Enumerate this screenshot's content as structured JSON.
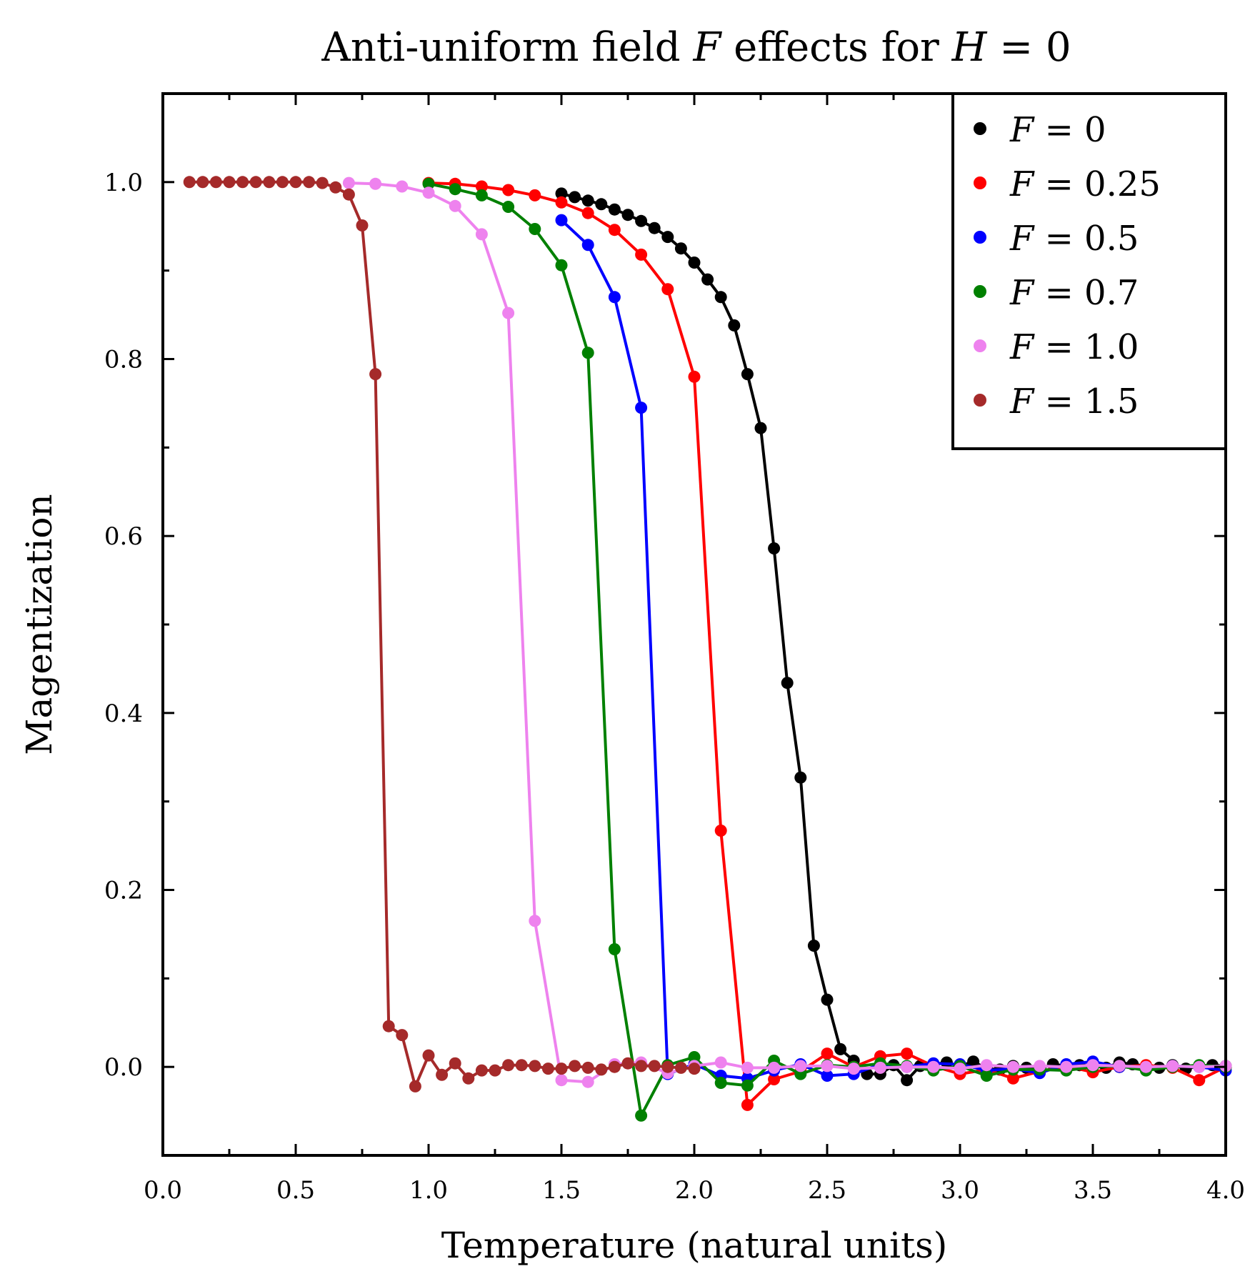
{
  "chart_data": {
    "type": "line",
    "title_parts": {
      "prefix": "Anti-uniform field ",
      "var": "F",
      "middle": " effects for ",
      "var2": "H",
      "suffix": " = 0"
    },
    "xlabel": "Temperature (natural units)",
    "ylabel": "Magentization",
    "xlim": [
      0.0,
      4.0
    ],
    "ylim": [
      -0.1,
      1.1
    ],
    "xticks": [
      "0.0",
      "0.5",
      "1.0",
      "1.5",
      "2.0",
      "2.5",
      "3.0",
      "3.5",
      "4.0"
    ],
    "xtick_values": [
      0.0,
      0.5,
      1.0,
      1.5,
      2.0,
      2.5,
      3.0,
      3.5,
      4.0
    ],
    "yticks": [
      "0.0",
      "0.2",
      "0.4",
      "0.6",
      "0.8",
      "1.0"
    ],
    "ytick_values": [
      0.0,
      0.2,
      0.4,
      0.6,
      0.8,
      1.0
    ],
    "legend_position": "top-right",
    "series": [
      {
        "name": "F = 0",
        "var": "F",
        "rest": "= 0",
        "color": "#000000",
        "x": [
          1.5,
          1.55,
          1.6,
          1.65,
          1.7,
          1.75,
          1.8,
          1.85,
          1.9,
          1.95,
          2.0,
          2.05,
          2.1,
          2.15,
          2.2,
          2.25,
          2.3,
          2.35,
          2.4,
          2.45,
          2.5,
          2.55,
          2.6,
          2.65,
          2.7,
          2.75,
          2.8,
          2.85,
          2.9,
          2.95,
          3.0,
          3.05,
          3.1,
          3.15,
          3.2,
          3.25,
          3.3,
          3.35,
          3.4,
          3.45,
          3.5,
          3.55,
          3.6,
          3.65,
          3.7,
          3.75,
          3.8,
          3.85,
          3.9,
          3.95,
          4.0
        ],
        "y": [
          0.987,
          0.983,
          0.979,
          0.975,
          0.969,
          0.963,
          0.956,
          0.948,
          0.938,
          0.925,
          0.909,
          0.89,
          0.87,
          0.838,
          0.783,
          0.722,
          0.586,
          0.434,
          0.327,
          0.137,
          0.076,
          0.02,
          0.007,
          -0.008,
          -0.008,
          0.002,
          -0.015,
          0.001,
          0.003,
          0.005,
          0.001,
          0.006,
          -0.002,
          -0.003,
          0.001,
          -0.001,
          -0.002,
          0.003,
          0.001,
          0.002,
          0.001,
          -0.001,
          0.005,
          0.003,
          0.001,
          -0.001,
          0.002,
          -0.002,
          0.001,
          0.002,
          0.001
        ]
      },
      {
        "name": "F = 0.25",
        "var": "F",
        "rest": "= 0.25",
        "color": "#ff0000",
        "x": [
          1.0,
          1.1,
          1.2,
          1.3,
          1.4,
          1.5,
          1.6,
          1.7,
          1.8,
          1.9,
          2.0,
          2.1,
          2.2,
          2.3,
          2.4,
          2.5,
          2.6,
          2.7,
          2.8,
          2.9,
          3.0,
          3.1,
          3.2,
          3.3,
          3.4,
          3.5,
          3.6,
          3.7,
          3.8,
          3.9,
          4.0
        ],
        "y": [
          0.999,
          0.998,
          0.995,
          0.991,
          0.985,
          0.977,
          0.965,
          0.946,
          0.918,
          0.879,
          0.78,
          0.267,
          -0.043,
          -0.014,
          -0.005,
          0.015,
          0.0,
          0.012,
          0.015,
          0.001,
          -0.008,
          -0.003,
          -0.013,
          -0.005,
          0.001,
          -0.006,
          0.0,
          0.002,
          -0.001,
          -0.015,
          0.0
        ]
      },
      {
        "name": "F = 0.5",
        "var": "F",
        "rest": "= 0.5",
        "color": "#0000ff",
        "x": [
          1.5,
          1.6,
          1.7,
          1.8,
          1.9,
          2.0,
          2.1,
          2.2,
          2.3,
          2.4,
          2.5,
          2.6,
          2.7,
          2.8,
          2.9,
          3.0,
          3.1,
          3.2,
          3.3,
          3.4,
          3.5,
          3.6,
          3.7,
          3.8,
          3.9,
          4.0
        ],
        "y": [
          0.957,
          0.929,
          0.87,
          0.745,
          -0.008,
          0.003,
          -0.01,
          -0.013,
          -0.004,
          0.003,
          -0.01,
          -0.008,
          0.003,
          0.0,
          0.004,
          0.003,
          -0.004,
          -0.002,
          -0.007,
          0.003,
          0.006,
          0.0,
          -0.001,
          0.001,
          0.0,
          -0.004
        ]
      },
      {
        "name": "F = 0.7",
        "var": "F",
        "rest": "= 0.7",
        "color": "#008000",
        "x": [
          1.0,
          1.1,
          1.2,
          1.3,
          1.4,
          1.5,
          1.6,
          1.7,
          1.8,
          1.9,
          2.0,
          2.1,
          2.2,
          2.3,
          2.4,
          2.5,
          2.6,
          2.7,
          2.8,
          2.9,
          3.0,
          3.1,
          3.2,
          3.3,
          3.4,
          3.5,
          3.6,
          3.7,
          3.8,
          3.9,
          4.0
        ],
        "y": [
          0.998,
          0.992,
          0.985,
          0.972,
          0.947,
          0.906,
          0.807,
          0.133,
          -0.055,
          0.002,
          0.011,
          -0.018,
          -0.021,
          0.007,
          -0.008,
          0.002,
          0.0,
          0.004,
          0.001,
          -0.004,
          0.001,
          -0.01,
          -0.003,
          -0.003,
          -0.004,
          0.0,
          0.001,
          -0.004,
          0.0,
          0.002,
          0.0
        ]
      },
      {
        "name": "F = 1.0",
        "var": "F",
        "rest": "= 1.0",
        "color": "#ee82ee",
        "x": [
          0.7,
          0.8,
          0.9,
          1.0,
          1.1,
          1.2,
          1.3,
          1.4,
          1.5,
          1.6,
          1.7,
          1.8,
          1.9,
          2.0,
          2.1,
          2.2,
          2.3,
          2.4,
          2.5,
          2.6,
          2.7,
          2.8,
          2.9,
          3.0,
          3.1,
          3.2,
          3.3,
          3.4,
          3.5,
          3.6,
          3.7,
          3.8,
          3.9,
          4.0
        ],
        "y": [
          0.999,
          0.998,
          0.995,
          0.988,
          0.973,
          0.941,
          0.852,
          0.165,
          -0.015,
          -0.017,
          0.003,
          0.005,
          -0.007,
          0.001,
          0.005,
          -0.001,
          -0.001,
          0.001,
          0.001,
          -0.002,
          -0.001,
          0.0,
          0.0,
          -0.002,
          0.002,
          0.0,
          0.001,
          0.0,
          0.002,
          0.001,
          0.0,
          0.001,
          0.0,
          0.001
        ]
      },
      {
        "name": "F = 1.5",
        "var": "F",
        "rest": "= 1.5",
        "color": "#a52a2a",
        "x": [
          0.1,
          0.15,
          0.2,
          0.25,
          0.3,
          0.35,
          0.4,
          0.45,
          0.5,
          0.55,
          0.6,
          0.65,
          0.7,
          0.75,
          0.8,
          0.85,
          0.9,
          0.95,
          1.0,
          1.05,
          1.1,
          1.15,
          1.2,
          1.25,
          1.3,
          1.35,
          1.4,
          1.45,
          1.5,
          1.55,
          1.6,
          1.65,
          1.7,
          1.75,
          1.8,
          1.85,
          1.9,
          1.95,
          2.0
        ],
        "y": [
          1.0,
          1.0,
          1.0,
          1.0,
          1.0,
          1.0,
          1.0,
          1.0,
          1.0,
          1.0,
          0.999,
          0.994,
          0.986,
          0.951,
          0.783,
          0.046,
          0.036,
          -0.022,
          0.013,
          -0.009,
          0.004,
          -0.013,
          -0.004,
          -0.004,
          0.002,
          0.002,
          0.001,
          -0.002,
          -0.002,
          0.001,
          -0.001,
          -0.003,
          0.0,
          0.004,
          0.001,
          0.001,
          0.0,
          -0.001,
          -0.002
        ]
      }
    ]
  }
}
